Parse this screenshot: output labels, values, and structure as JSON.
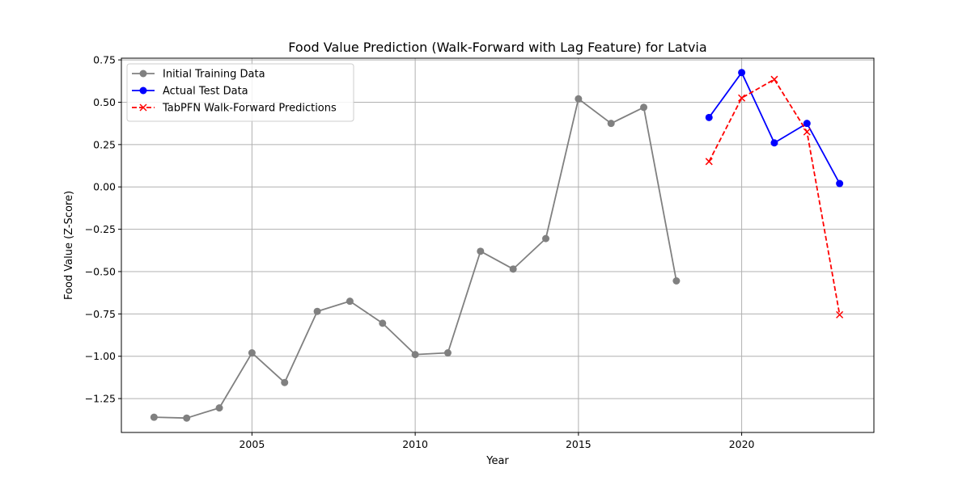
{
  "chart_data": {
    "type": "line",
    "title": "Food Value Prediction (Walk-Forward with Lag Feature) for Latvia",
    "xlabel": "Year",
    "ylabel": "Food Value (Z-Score)",
    "xlim": [
      2001.0,
      2024.05
    ],
    "ylim": [
      -1.45,
      0.76
    ],
    "x_ticks": [
      2005,
      2010,
      2015,
      2020
    ],
    "x_tick_labels": [
      "2005",
      "2010",
      "2015",
      "2020"
    ],
    "y_ticks": [
      0.75,
      0.5,
      0.25,
      0.0,
      -0.25,
      -0.5,
      -0.75,
      -1.0,
      -1.25
    ],
    "y_tick_labels": [
      "0.75",
      "0.50",
      "0.25",
      "0.00",
      "−0.25",
      "−0.50",
      "−0.75",
      "−1.00",
      "−1.25"
    ],
    "grid": true,
    "legend_position": "top-left",
    "series": [
      {
        "name": "Initial Training Data",
        "color": "#808080",
        "marker": "circle",
        "line_style": "solid",
        "x": [
          2002,
          2003,
          2004,
          2005,
          2006,
          2007,
          2008,
          2009,
          2010,
          2011,
          2012,
          2013,
          2014,
          2015,
          2016,
          2017,
          2018
        ],
        "y": [
          -1.36,
          -1.365,
          -1.305,
          -0.98,
          -1.155,
          -0.735,
          -0.675,
          -0.805,
          -0.99,
          -0.98,
          -0.38,
          -0.485,
          -0.305,
          0.52,
          0.375,
          0.47,
          -0.555
        ]
      },
      {
        "name": "Actual Test Data",
        "color": "#0000ff",
        "marker": "circle",
        "line_style": "solid",
        "x": [
          2019,
          2020,
          2021,
          2022,
          2023
        ],
        "y": [
          0.41,
          0.675,
          0.26,
          0.375,
          0.02
        ]
      },
      {
        "name": "TabPFN Walk-Forward Predictions",
        "color": "#ff0000",
        "marker": "x",
        "line_style": "dashed",
        "x": [
          2019,
          2020,
          2021,
          2022,
          2023
        ],
        "y": [
          0.15,
          0.525,
          0.635,
          0.325,
          -0.755
        ]
      }
    ]
  }
}
